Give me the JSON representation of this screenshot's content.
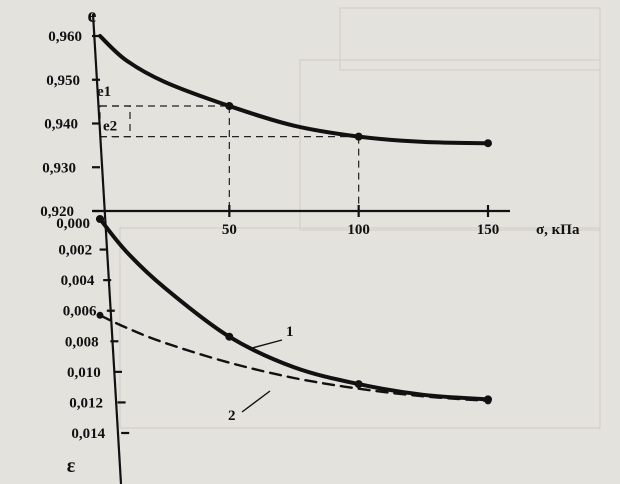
{
  "chart_data": [
    {
      "type": "line",
      "ylabel": "e",
      "y_ticks": [
        "0,960",
        "0,950",
        "0,940",
        "0,930",
        "0,920"
      ],
      "ylim": [
        0.92,
        0.962
      ],
      "x_ticks": [
        "50",
        "100",
        "150"
      ],
      "xlabel": "σ, кПа",
      "xlim": [
        0,
        150
      ],
      "annotations": [
        "e1",
        "e2"
      ],
      "series": [
        {
          "x": [
            0,
            10,
            25,
            50,
            75,
            100,
            125,
            150
          ],
          "y": [
            0.96,
            0.9545,
            0.9495,
            0.944,
            0.9395,
            0.937,
            0.9358,
            0.9355
          ],
          "markers_x": [
            50,
            100,
            150
          ]
        }
      ],
      "guides": [
        {
          "x": 50,
          "y": 0.944,
          "to_axis": true,
          "label": "e1"
        },
        {
          "x": 100,
          "y": 0.937,
          "to_axis": true,
          "label": "e2"
        }
      ]
    },
    {
      "type": "line",
      "ylabel": "ε",
      "y_ticks": [
        "0,000",
        "0,002",
        "0,004",
        "0,006",
        "0,008",
        "0,010",
        "0,012",
        "0,014"
      ],
      "ylim": [
        0,
        0.0155
      ],
      "series": [
        {
          "name": "1",
          "style": "solid",
          "x": [
            0,
            10,
            25,
            50,
            75,
            100,
            125,
            150
          ],
          "y": [
            0.0,
            0.0021,
            0.0045,
            0.0077,
            0.0097,
            0.0108,
            0.0115,
            0.0118
          ],
          "markers_x": [
            0,
            50,
            100,
            150
          ]
        },
        {
          "name": "2",
          "style": "dashed",
          "x": [
            0,
            10,
            25,
            50,
            75,
            100,
            125,
            150
          ],
          "y": [
            0.0063,
            0.0071,
            0.0081,
            0.0094,
            0.0104,
            0.0111,
            0.0116,
            0.0119
          ],
          "markers_x": [
            0,
            150
          ]
        }
      ]
    }
  ],
  "colors": {
    "background": "#e4e2dd",
    "ink": "#111111"
  }
}
